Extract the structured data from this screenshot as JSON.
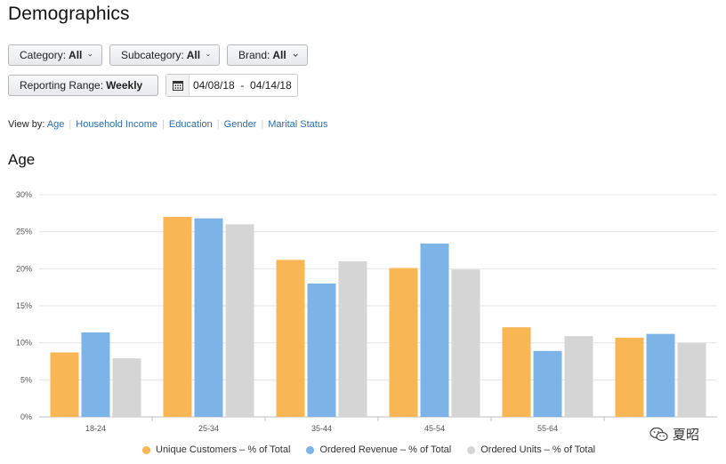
{
  "page": {
    "title": "Demographics"
  },
  "filters": {
    "category": {
      "label": "Category:",
      "value": "All"
    },
    "subcategory": {
      "label": "Subcategory:",
      "value": "All"
    },
    "brand": {
      "label": "Brand:",
      "value": "All"
    },
    "reporting_range": {
      "label": "Reporting Range:",
      "value": "Weekly"
    },
    "date_range": "04/08/18  -  04/14/18"
  },
  "view_by": {
    "label": "View by:",
    "options": [
      "Age",
      "Household Income",
      "Education",
      "Gender",
      "Marital Status"
    ]
  },
  "section_title": "Age",
  "legend": {
    "items": [
      "Unique Customers – % of Total",
      "Ordered Revenue – % of Total",
      "Ordered Units – % of Total"
    ]
  },
  "watermark": {
    "text": "夏昭"
  },
  "chart_data": {
    "type": "bar",
    "categories": [
      "18-24",
      "25-34",
      "35-44",
      "45-54",
      "55-64",
      ""
    ],
    "series": [
      {
        "name": "Unique Customers – % of Total",
        "color": "#f8b654",
        "values": [
          8.7,
          27.0,
          21.2,
          20.1,
          12.1,
          10.7
        ]
      },
      {
        "name": "Ordered Revenue – % of Total",
        "color": "#7cb4e8",
        "values": [
          11.4,
          26.8,
          18.0,
          23.4,
          8.9,
          11.2
        ]
      },
      {
        "name": "Ordered Units – % of Total",
        "color": "#d5d5d5",
        "values": [
          7.9,
          26.0,
          21.0,
          19.9,
          10.9,
          10.0
        ]
      }
    ],
    "y_ticks": [
      "0%",
      "5%",
      "10%",
      "15%",
      "20%",
      "25%",
      "30%"
    ],
    "ylim": [
      0,
      30
    ],
    "grid": true,
    "legend_position": "bottom"
  }
}
